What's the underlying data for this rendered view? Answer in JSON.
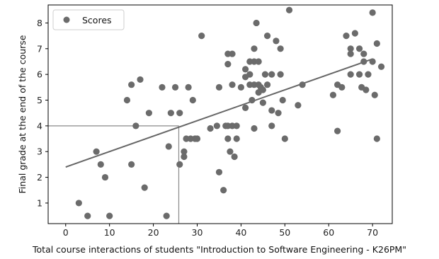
{
  "chart_data": {
    "type": "scatter",
    "xlabel": "Total course interactions of students \"Introduction to Software Engineering - K26PM\"",
    "ylabel": "Final grade at the end of the course",
    "xlim": [
      -4,
      74.5
    ],
    "ylim": [
      0.2,
      8.7
    ],
    "x_ticks": [
      0,
      10,
      20,
      30,
      40,
      50,
      60,
      70
    ],
    "y_ticks": [
      1,
      2,
      3,
      4,
      5,
      6,
      7,
      8
    ],
    "grid": false,
    "legend": {
      "position": "top-left",
      "entries": [
        "Scores"
      ]
    },
    "colors": {
      "points": "#6b6b6b",
      "trend": "#666666",
      "guide": "#8a8a8a",
      "axes": "#000000"
    },
    "series": [
      {
        "name": "Scores",
        "points": [
          [
            3,
            1.0
          ],
          [
            5,
            0.5
          ],
          [
            7,
            3.0
          ],
          [
            8,
            2.5
          ],
          [
            9,
            2.0
          ],
          [
            10,
            0.5
          ],
          [
            14,
            5.0
          ],
          [
            15,
            5.6
          ],
          [
            15,
            2.5
          ],
          [
            16,
            4.0
          ],
          [
            17,
            5.8
          ],
          [
            18,
            1.6
          ],
          [
            19,
            4.5
          ],
          [
            22,
            5.5
          ],
          [
            23,
            0.5
          ],
          [
            23.5,
            3.2
          ],
          [
            24,
            4.5
          ],
          [
            25,
            5.5
          ],
          [
            26,
            2.5
          ],
          [
            26,
            4.5
          ],
          [
            27,
            3.0
          ],
          [
            27,
            2.8
          ],
          [
            27.5,
            3.5
          ],
          [
            28,
            5.5
          ],
          [
            28.5,
            3.5
          ],
          [
            29,
            5.0
          ],
          [
            29.5,
            3.5
          ],
          [
            30,
            3.5
          ],
          [
            31,
            7.5
          ],
          [
            33,
            3.9
          ],
          [
            34.5,
            4.0
          ],
          [
            35,
            5.5
          ],
          [
            35,
            2.2
          ],
          [
            36,
            1.5
          ],
          [
            36.5,
            4.0
          ],
          [
            37,
            4.0
          ],
          [
            37,
            3.5
          ],
          [
            37,
            6.8
          ],
          [
            37,
            6.4
          ],
          [
            37.5,
            3.0
          ],
          [
            38,
            4.0
          ],
          [
            38,
            6.8
          ],
          [
            38,
            5.6
          ],
          [
            39,
            4.0
          ],
          [
            39,
            3.5
          ],
          [
            38.5,
            2.8
          ],
          [
            40,
            5.5
          ],
          [
            41,
            6.2
          ],
          [
            41,
            5.9
          ],
          [
            41,
            4.7
          ],
          [
            42,
            5.6
          ],
          [
            42,
            6.5
          ],
          [
            42,
            6.0
          ],
          [
            42.5,
            5.0
          ],
          [
            43,
            7.0
          ],
          [
            43,
            6.5
          ],
          [
            43,
            5.6
          ],
          [
            43,
            3.9
          ],
          [
            43.5,
            8.0
          ],
          [
            44,
            6.5
          ],
          [
            44,
            5.6
          ],
          [
            44,
            5.3
          ],
          [
            44.5,
            5.5
          ],
          [
            45,
            5.4
          ],
          [
            45,
            4.9
          ],
          [
            45.5,
            6.0
          ],
          [
            46,
            7.5
          ],
          [
            46,
            5.6
          ],
          [
            47,
            6.0
          ],
          [
            47,
            4.0
          ],
          [
            47,
            4.6
          ],
          [
            48,
            7.3
          ],
          [
            48.5,
            4.5
          ],
          [
            49,
            7.0
          ],
          [
            49,
            6.0
          ],
          [
            49.5,
            5.0
          ],
          [
            50,
            3.5
          ],
          [
            51,
            8.5
          ],
          [
            53,
            4.8
          ],
          [
            54,
            5.6
          ],
          [
            61,
            5.2
          ],
          [
            62,
            5.6
          ],
          [
            62,
            3.8
          ],
          [
            63,
            5.5
          ],
          [
            64,
            7.5
          ],
          [
            65,
            7.0
          ],
          [
            65,
            6.8
          ],
          [
            65,
            6.0
          ],
          [
            66,
            7.6
          ],
          [
            67,
            7.0
          ],
          [
            67,
            6.0
          ],
          [
            67.5,
            5.5
          ],
          [
            68,
            6.8
          ],
          [
            68,
            6.5
          ],
          [
            68.5,
            5.4
          ],
          [
            69,
            6.0
          ],
          [
            70,
            8.4
          ],
          [
            70,
            6.5
          ],
          [
            70.5,
            5.2
          ],
          [
            71,
            7.2
          ],
          [
            71,
            3.5
          ],
          [
            72,
            6.3
          ]
        ]
      }
    ],
    "trendline": {
      "x": [
        0,
        70
      ],
      "y": [
        2.4,
        6.6
      ]
    },
    "guides": {
      "x": 25.8,
      "y": 4.0
    }
  }
}
